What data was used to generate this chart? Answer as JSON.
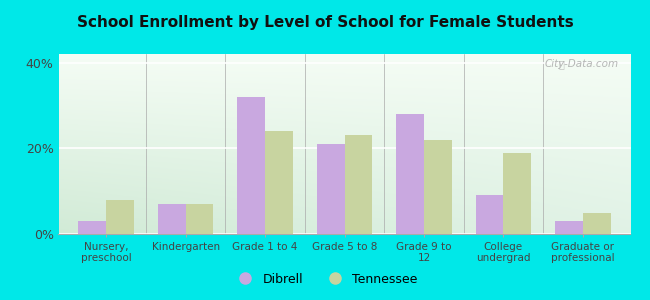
{
  "title": "School Enrollment by Level of School for Female Students",
  "categories": [
    "Nursery,\npreschool",
    "Kindergarten",
    "Grade 1 to 4",
    "Grade 5 to 8",
    "Grade 9 to\n12",
    "College\nundergrad",
    "Graduate or\nprofessional"
  ],
  "dibrell": [
    3,
    7,
    32,
    21,
    28,
    9,
    3
  ],
  "tennessee": [
    8,
    7,
    24,
    23,
    22,
    19,
    5
  ],
  "dibrell_color": "#c9a8e0",
  "tennessee_color": "#c8d4a0",
  "ylim": [
    0,
    42
  ],
  "yticks": [
    0,
    20,
    40
  ],
  "ytick_labels": [
    "0%",
    "20%",
    "40%"
  ],
  "background_color": "#00e8e8",
  "bar_width": 0.35,
  "legend_labels": [
    "Dibrell",
    "Tennessee"
  ],
  "watermark": "City-Data.com"
}
